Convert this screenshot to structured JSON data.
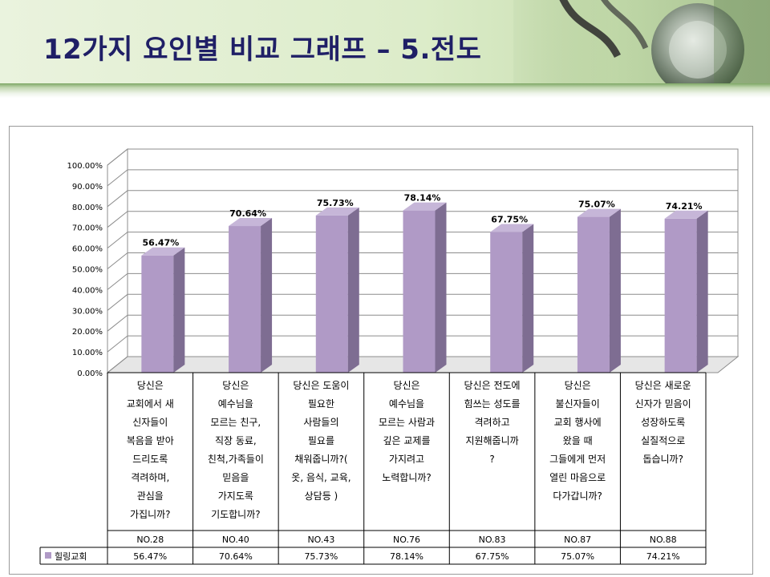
{
  "title": "12가지 요인별 비교 그래프 – 5.전도",
  "colors": {
    "bar_front": "#b09ac6",
    "bar_side": "#7e6d92",
    "bar_top": "#c6b6d8",
    "grid": "#8c8c8c",
    "title": "#1f1f66"
  },
  "chart_data": {
    "type": "bar",
    "style": "3d-clustered-column",
    "ylim": [
      0,
      100
    ],
    "y_ticks": [
      "0.00%",
      "10.00%",
      "20.00%",
      "30.00%",
      "40.00%",
      "50.00%",
      "60.00%",
      "70.00%",
      "80.00%",
      "90.00%",
      "100.00%"
    ],
    "grid": true,
    "legend_position": "data-table-left",
    "categories": [
      {
        "lines": [
          "당신은",
          "교회에서 새",
          "신자들이",
          "복음을 받아",
          "드리도록",
          "격려하며,",
          "관심을",
          "가집니까?"
        ],
        "number": "NO.28"
      },
      {
        "lines": [
          "당신은",
          "예수님을",
          "모르는 친구,",
          "직장 동료,",
          "친척,가족들이",
          "믿음을",
          "가지도록",
          "기도합니까?"
        ],
        "number": "NO.40"
      },
      {
        "lines": [
          "당신은 도움이",
          "필요한",
          "사람들의",
          "필요를",
          "채워줍니까?(",
          "옷, 음식, 교육,",
          "상담등 )"
        ],
        "number": "NO.43"
      },
      {
        "lines": [
          "당신은",
          "예수님을",
          "모르는 사람과",
          "깊은 교제를",
          "가지려고",
          "노력합니까?"
        ],
        "number": "NO.76"
      },
      {
        "lines": [
          "당신은 전도에",
          "힘쓰는 성도를",
          "격려하고",
          "지원해줍니까",
          "?"
        ],
        "number": "NO.83"
      },
      {
        "lines": [
          "당신은",
          "불신자들이",
          "교회 행사에",
          "왔을 때",
          "그들에게 먼저",
          "열린 마음으로",
          "다가갑니까?"
        ],
        "number": "NO.87"
      },
      {
        "lines": [
          "당신은 새로운",
          "신자가 믿음이",
          "성장하도록",
          "실질적으로",
          "돕습니까?"
        ],
        "number": "NO.88"
      }
    ],
    "series": [
      {
        "name": "힐링교회",
        "values": [
          56.47,
          70.64,
          75.73,
          78.14,
          67.75,
          75.07,
          74.21
        ],
        "labels": [
          "56.47%",
          "70.64%",
          "75.73%",
          "78.14%",
          "67.75%",
          "75.07%",
          "74.21%"
        ]
      }
    ]
  }
}
